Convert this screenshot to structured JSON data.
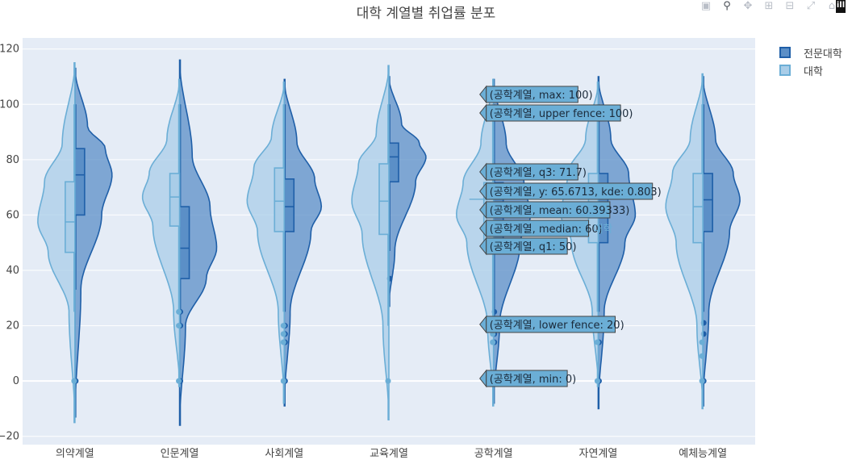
{
  "title": "대학 계열별 취업률 분포",
  "modebar": {
    "icons": [
      "camera-icon",
      "zoom-icon",
      "pan-icon",
      "zoom-in-icon",
      "zoom-out-icon",
      "autoscale-icon",
      "home-icon"
    ],
    "logo": "ill"
  },
  "chart_data": {
    "type": "violin",
    "categories": [
      "의약계열",
      "인문계열",
      "사회계열",
      "교육계열",
      "공학계열",
      "자연계열",
      "예체능계열"
    ],
    "ylim": [
      -23,
      124
    ],
    "yticks": [
      -20,
      0,
      20,
      40,
      60,
      80,
      100,
      120
    ],
    "grid": true,
    "legend_position": "top-right",
    "series": [
      {
        "name": "전문대학",
        "side": "positive",
        "color": "#1f5fa8",
        "fill": "#5b8fc7",
        "stats": [
          {
            "min": 0,
            "q1": 60,
            "median": 74.5,
            "q3": 84,
            "max": 100,
            "lower_fence": 33,
            "upper_fence": 100,
            "range": [
              -13,
              113
            ],
            "points": [
              0
            ]
          },
          {
            "min": 0,
            "q1": 37,
            "median": 48,
            "q3": 63,
            "max": 100,
            "lower_fence": 20,
            "upper_fence": 100,
            "range": [
              -16,
              116
            ],
            "points": [
              0,
              20,
              25
            ]
          },
          {
            "min": 0,
            "q1": 54,
            "median": 63,
            "q3": 73,
            "max": 100,
            "lower_fence": 25,
            "upper_fence": 100,
            "range": [
              -9,
              109
            ],
            "points": [
              0,
              14,
              17,
              20
            ]
          },
          {
            "min": 37,
            "q1": 72,
            "median": 81,
            "q3": 86,
            "max": 100,
            "lower_fence": 47,
            "upper_fence": 100,
            "range": [
              27,
              110
            ],
            "points": [
              37
            ]
          },
          {
            "min": 0,
            "q1": 50,
            "median": 60,
            "q3": 71.7,
            "max": 100,
            "lower_fence": 20,
            "upper_fence": 100,
            "range": [
              -8,
              109
            ],
            "points": [
              0,
              14,
              17,
              25
            ]
          },
          {
            "min": 0,
            "q1": 50,
            "median": 60,
            "q3": 75,
            "max": 100,
            "lower_fence": 25,
            "upper_fence": 100,
            "range": [
              -10,
              110
            ],
            "points": [
              0,
              14
            ]
          },
          {
            "min": 0,
            "q1": 54,
            "median": 65.5,
            "q3": 75,
            "max": 100,
            "lower_fence": 25,
            "upper_fence": 100,
            "range": [
              -9,
              110
            ],
            "points": [
              0,
              17,
              21
            ]
          }
        ]
      },
      {
        "name": "대학",
        "side": "negative",
        "color": "#6baed6",
        "fill": "#a9cde8",
        "stats": [
          {
            "min": 0,
            "q1": 46.5,
            "median": 57.5,
            "q3": 72,
            "max": 100,
            "lower_fence": 25,
            "upper_fence": 100,
            "range": [
              -15,
              115
            ],
            "points": [
              0
            ]
          },
          {
            "min": 0,
            "q1": 56,
            "median": 66.5,
            "q3": 75,
            "max": 100,
            "lower_fence": 25,
            "upper_fence": 100,
            "range": [
              -2,
              109
            ],
            "points": [
              0,
              20,
              25
            ]
          },
          {
            "min": 0,
            "q1": 54,
            "median": 65,
            "q3": 77,
            "max": 100,
            "lower_fence": 25,
            "upper_fence": 100,
            "range": [
              -8,
              108
            ],
            "points": [
              0,
              14,
              17,
              20
            ]
          },
          {
            "min": 0,
            "q1": 53,
            "median": 65,
            "q3": 78.5,
            "max": 100,
            "lower_fence": 20,
            "upper_fence": 100,
            "range": [
              -14,
              114
            ],
            "points": [
              0
            ]
          },
          {
            "min": 0,
            "q1": 50,
            "median": 60,
            "q3": 71.7,
            "max": 100,
            "lower_fence": 20,
            "upper_fence": 100,
            "range": [
              -9,
              109
            ],
            "points": [
              0,
              14,
              17
            ]
          },
          {
            "min": 0,
            "q1": 50,
            "median": 60,
            "q3": 75,
            "max": 100,
            "lower_fence": 25,
            "upper_fence": 100,
            "range": [
              -2,
              108
            ],
            "points": [
              0,
              14
            ]
          },
          {
            "min": 0,
            "q1": 50,
            "median": 63,
            "q3": 75,
            "max": 100,
            "lower_fence": 20,
            "upper_fence": 100,
            "range": [
              -10,
              111
            ],
            "points": [
              0,
              9,
              14
            ]
          }
        ]
      }
    ],
    "hover": {
      "category_index": 4,
      "trace_label": "대학",
      "labels": [
        {
          "text": "(공학계열, max: 100)",
          "value": 100
        },
        {
          "text": "(공학계열, upper fence: 100)",
          "value": 100
        },
        {
          "text": "(공학계열, q3: 71.7)",
          "value": 71.7
        },
        {
          "text": "(공학계열, y: 65.6713, kde: 0.803)",
          "value": 65.6713
        },
        {
          "text": "(공학계열, mean: 60.39333)",
          "value": 60.39333
        },
        {
          "text": "(공학계열, median: 60)",
          "value": 60
        },
        {
          "text": "(공학계열, q1: 50)",
          "value": 50
        },
        {
          "text": "(공학계열, lower fence: 20)",
          "value": 20
        },
        {
          "text": "(공학계열, min: 0)",
          "value": 0
        }
      ]
    }
  }
}
